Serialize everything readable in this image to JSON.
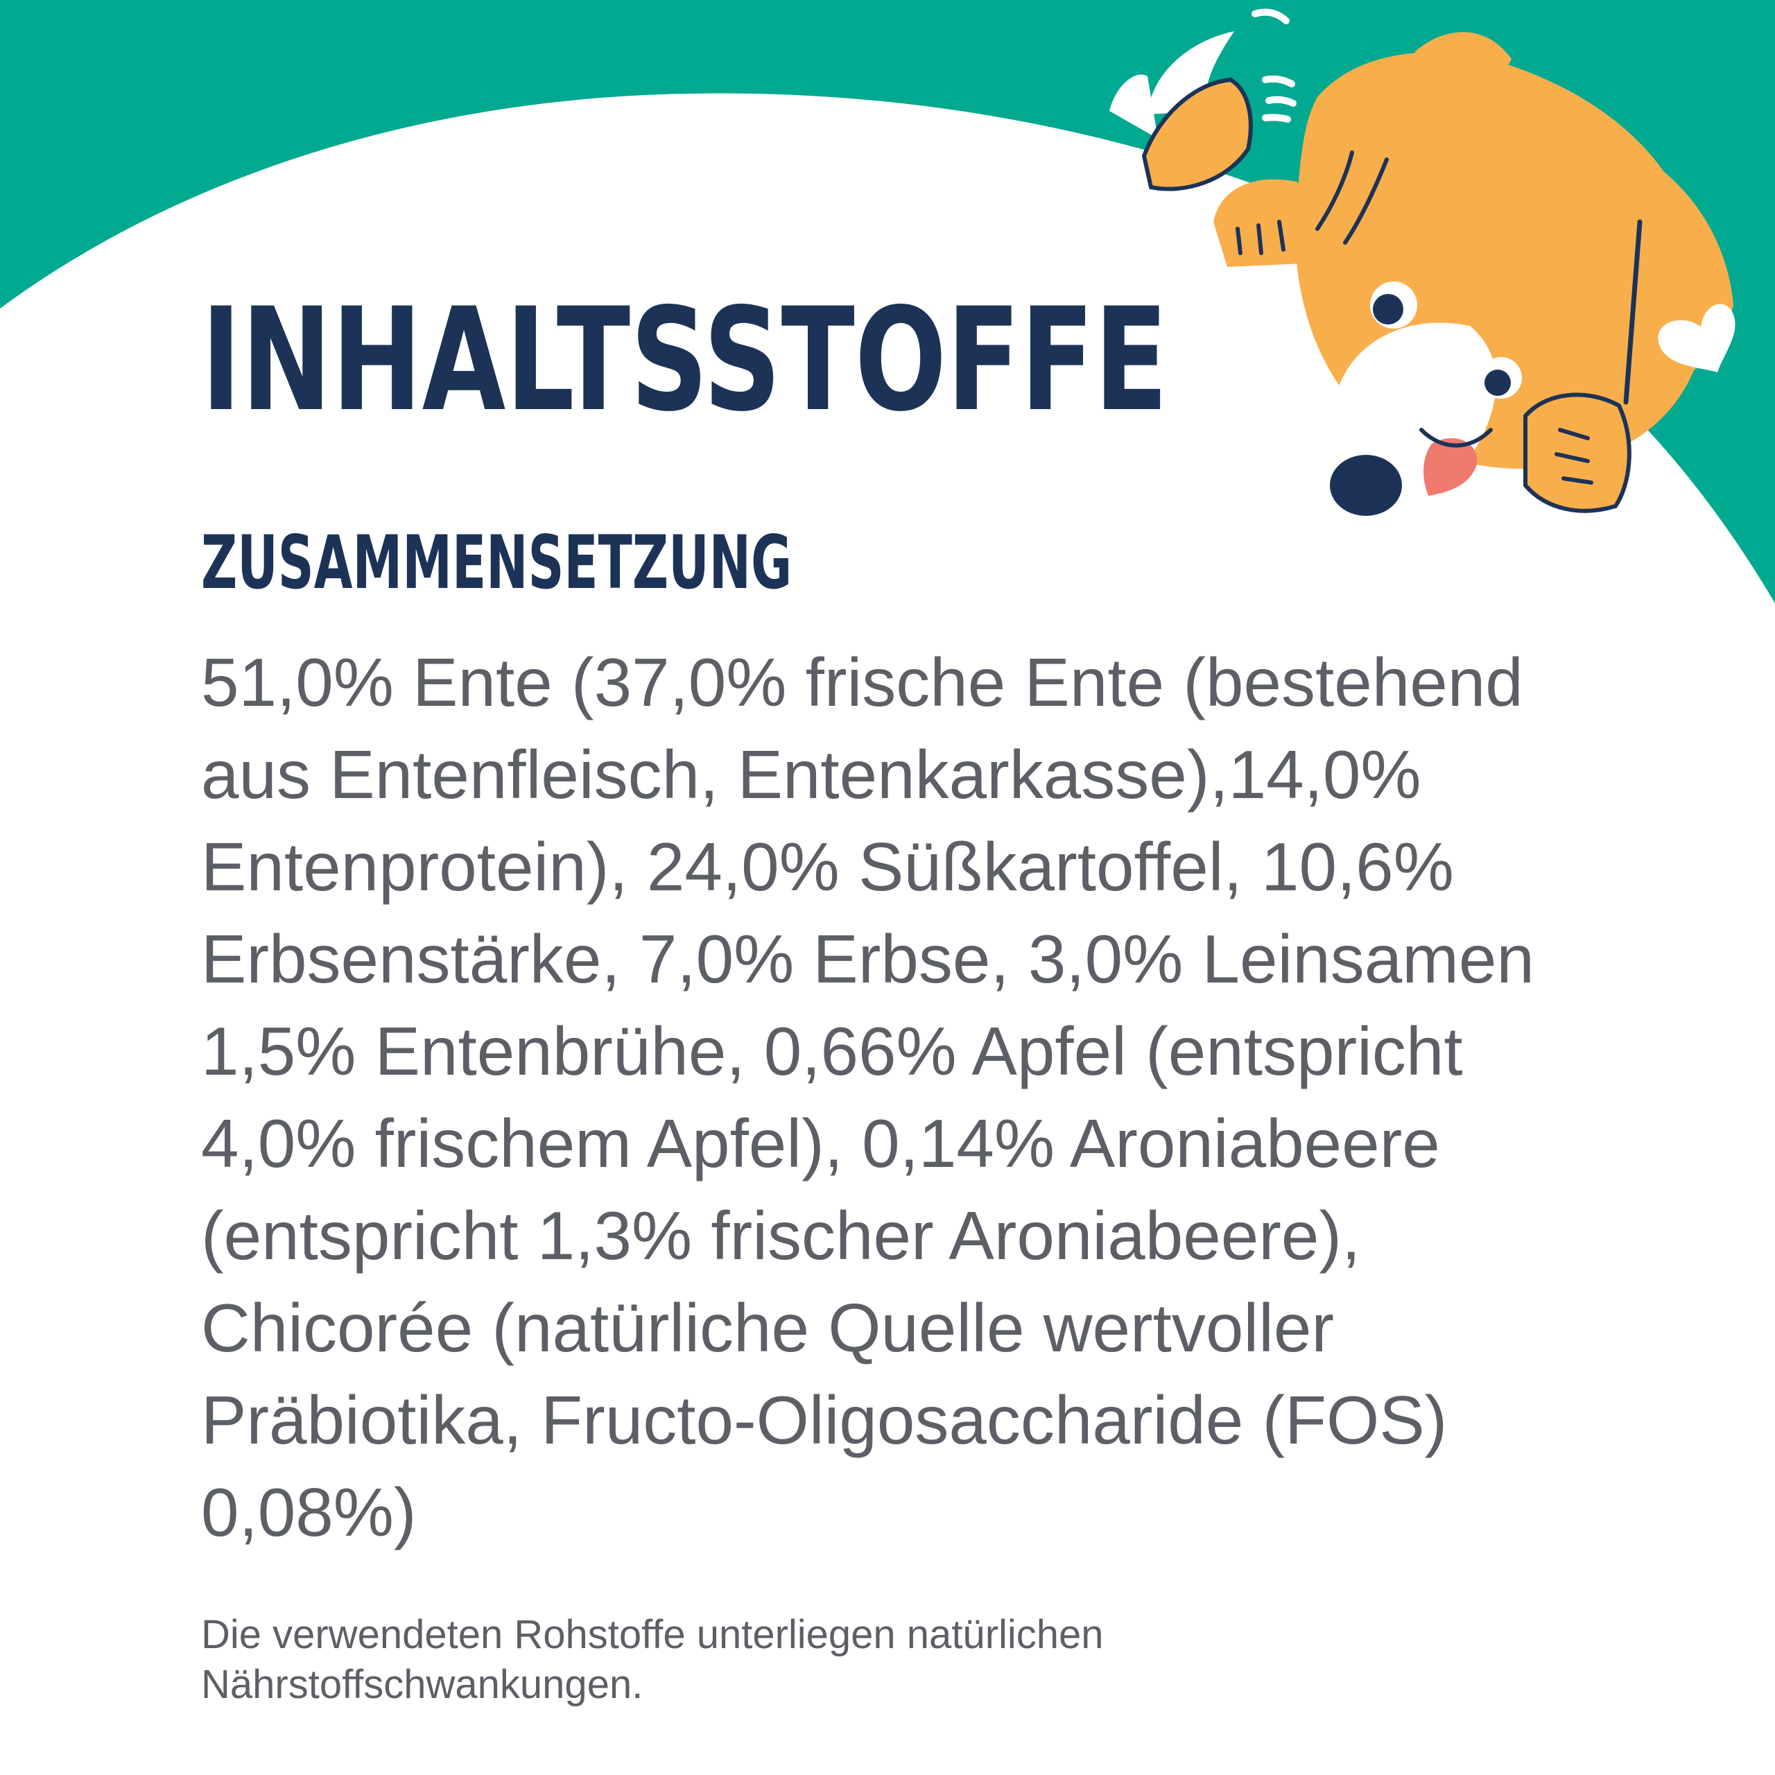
{
  "colors": {
    "teal": "#00a98f",
    "navy": "#1c3357",
    "text_gray": "#5d5f66",
    "dog_orange": "#f9ae4c"
  },
  "header": {
    "title": "INHALTSSTOFFE"
  },
  "composition": {
    "heading": "ZUSAMMENSETZUNG",
    "lines": [
      "51,0% Ente (37,0% frische Ente (bestehend",
      "aus Entenfleisch, Entenkarkasse),14,0%",
      "Entenprotein), 24,0% Süßkartoffel, 10,6%",
      "Erbsenstärke, 7,0% Erbse, 3,0% Leinsamen",
      "1,5% Entenbrühe, 0,66% Apfel (entspricht",
      "4,0% frischem Apfel), 0,14% Aroniabeere",
      "(entspricht 1,3% frischer Aroniabeere),",
      "Chicorée (natürliche Quelle wertvoller",
      "Präbiotika, Fructo-Oligosaccharide (FOS)",
      "0,08%)"
    ]
  },
  "footnote": {
    "lines": [
      "Die verwendeten Rohstoffe unterliegen natürlichen",
      "Nährstoffschwankungen."
    ]
  },
  "illustration": {
    "icon": "dog-illustration-icon"
  }
}
